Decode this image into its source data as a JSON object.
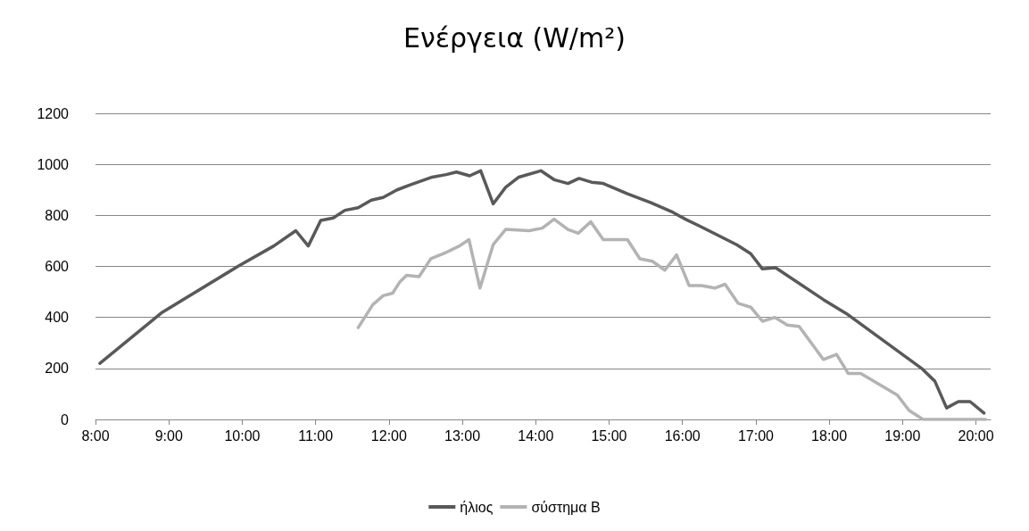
{
  "chart_data": {
    "type": "line",
    "title": "Ενέργεια (W/m²)",
    "series": [
      {
        "name": "ήλιος",
        "color": "#595959",
        "x": [
          8.06,
          8.91,
          9.94,
          10.43,
          10.73,
          10.9,
          11.07,
          11.24,
          11.4,
          11.58,
          11.76,
          11.92,
          12.11,
          12.29,
          12.59,
          12.78,
          12.92,
          13.1,
          13.25,
          13.42,
          13.59,
          13.77,
          14.07,
          14.25,
          14.44,
          14.59,
          14.76,
          14.92,
          15.25,
          15.57,
          15.85,
          16.04,
          16.22,
          16.74,
          16.93,
          17.09,
          17.27,
          17.92,
          18.26,
          19.26,
          19.44,
          19.6,
          19.76,
          19.92,
          20.11
        ],
        "values": [
          220,
          420,
          600,
          680,
          740,
          680,
          780,
          790,
          820,
          830,
          860,
          870,
          900,
          920,
          950,
          960,
          970,
          955,
          975,
          845,
          910,
          950,
          975,
          940,
          925,
          945,
          930,
          925,
          885,
          850,
          815,
          785,
          760,
          685,
          650,
          590,
          595,
          470,
          410,
          200,
          150,
          45,
          70,
          70,
          25
        ]
      },
      {
        "name": "σύστημα Β",
        "color": "#b3b3b3",
        "x": [
          11.58,
          11.78,
          11.92,
          12.05,
          12.15,
          12.24,
          12.41,
          12.57,
          12.78,
          12.96,
          13.09,
          13.24,
          13.42,
          13.59,
          13.91,
          14.09,
          14.25,
          14.44,
          14.58,
          14.75,
          14.92,
          15.25,
          15.42,
          15.59,
          15.76,
          15.92,
          16.09,
          16.26,
          16.44,
          16.58,
          16.76,
          16.93,
          17.09,
          17.26,
          17.43,
          17.59,
          17.92,
          18.1,
          18.26,
          18.43,
          18.93,
          19.09,
          19.28,
          20.13
        ],
        "values": [
          360,
          450,
          485,
          495,
          540,
          565,
          560,
          630,
          655,
          680,
          705,
          515,
          685,
          745,
          740,
          750,
          785,
          745,
          730,
          775,
          705,
          705,
          630,
          620,
          585,
          645,
          525,
          525,
          515,
          530,
          455,
          440,
          385,
          400,
          370,
          365,
          235,
          255,
          180,
          180,
          95,
          35,
          0,
          0
        ]
      }
    ],
    "xlim": [
      8,
      20.2
    ],
    "xticks": [
      {
        "value": 8,
        "label": "8:00"
      },
      {
        "value": 9,
        "label": "9:00"
      },
      {
        "value": 10,
        "label": "10:00"
      },
      {
        "value": 11,
        "label": "11:00"
      },
      {
        "value": 12,
        "label": "12:00"
      },
      {
        "value": 13,
        "label": "13:00"
      },
      {
        "value": 14,
        "label": "14:00"
      },
      {
        "value": 15,
        "label": "15:00"
      },
      {
        "value": 16,
        "label": "16:00"
      },
      {
        "value": 17,
        "label": "17:00"
      },
      {
        "value": 18,
        "label": "18:00"
      },
      {
        "value": 19,
        "label": "19:00"
      },
      {
        "value": 20,
        "label": "20:00"
      }
    ],
    "ylim": [
      0,
      1200
    ],
    "yticks": [
      0,
      200,
      400,
      600,
      800,
      1000,
      1200
    ],
    "grid": "y",
    "legend": "bottom",
    "marker": "none",
    "line_style": "solid"
  }
}
